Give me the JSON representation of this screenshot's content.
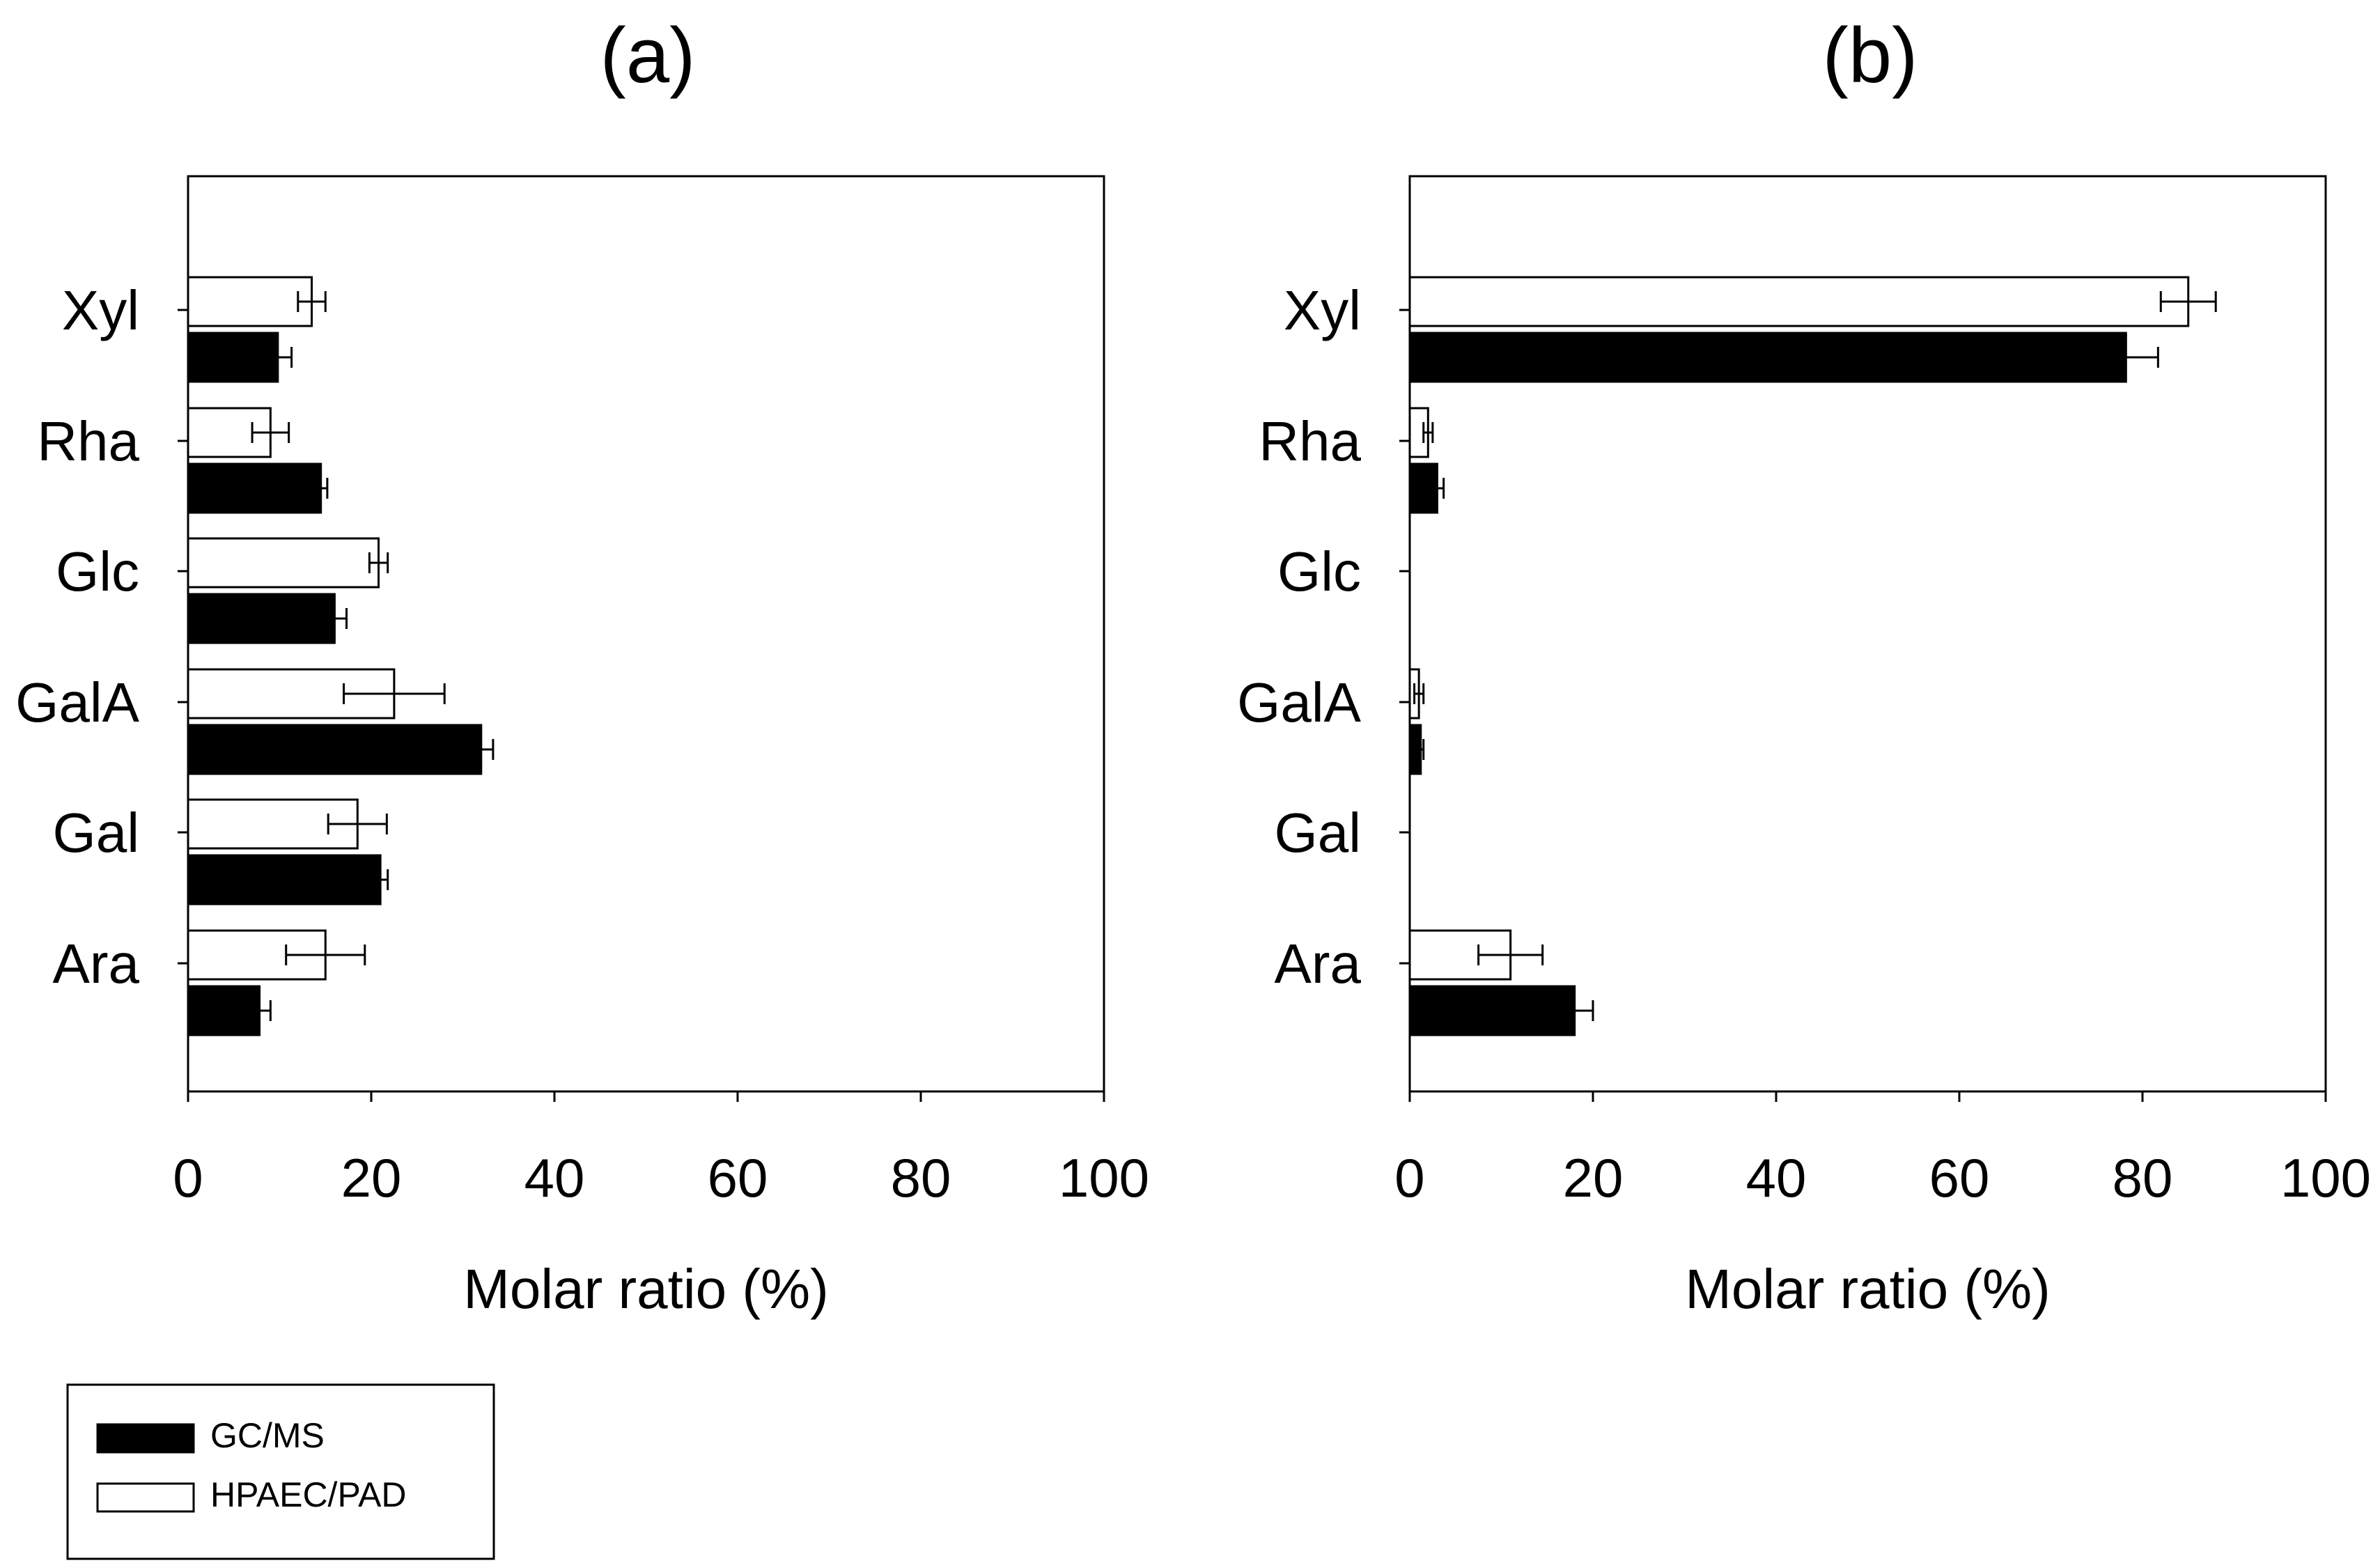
{
  "chart_data": [
    {
      "panel": "(a)",
      "type": "bar",
      "orientation": "horizontal",
      "categories": [
        "Xyl",
        "Rha",
        "Glc",
        "GalA",
        "Gal",
        "Ara"
      ],
      "series": [
        {
          "name": "HPAEC/PAD",
          "values": [
            13.5,
            9.0,
            20.8,
            22.5,
            18.5,
            15.0
          ],
          "errors": [
            1.5,
            2.0,
            1.0,
            5.5,
            3.2,
            4.3
          ]
        },
        {
          "name": "GC/MS",
          "values": [
            9.8,
            14.5,
            16.0,
            32.0,
            21.0,
            7.8
          ],
          "errors": [
            1.5,
            0.7,
            1.3,
            1.3,
            0.8,
            1.2
          ]
        }
      ],
      "xlabel": "Molar ratio (%)",
      "xlim": [
        0,
        100
      ],
      "xticks": [
        "0",
        "20",
        "40",
        "60",
        "80",
        "100"
      ]
    },
    {
      "panel": "(b)",
      "type": "bar",
      "orientation": "horizontal",
      "categories": [
        "Xyl",
        "Rha",
        "Glc",
        "GalA",
        "Gal",
        "Ara"
      ],
      "series": [
        {
          "name": "HPAEC/PAD",
          "values": [
            85.0,
            2.0,
            0,
            1.0,
            0,
            11.0
          ],
          "errors": [
            3.0,
            0.5,
            0,
            0.5,
            0,
            3.5
          ]
        },
        {
          "name": "GC/MS",
          "values": [
            78.2,
            3.0,
            0,
            1.2,
            0,
            18.0
          ],
          "errors": [
            3.5,
            0.7,
            0,
            0.3,
            0,
            2.0
          ]
        }
      ],
      "xlabel": "Molar ratio (%)",
      "xlim": [
        0,
        100
      ],
      "xticks": [
        "0",
        "20",
        "40",
        "60",
        "80",
        "100"
      ]
    }
  ],
  "legend": [
    {
      "label": "GC/MS",
      "color": "#000000"
    },
    {
      "label": "HPAEC/PAD",
      "color": "#ffffff"
    }
  ]
}
